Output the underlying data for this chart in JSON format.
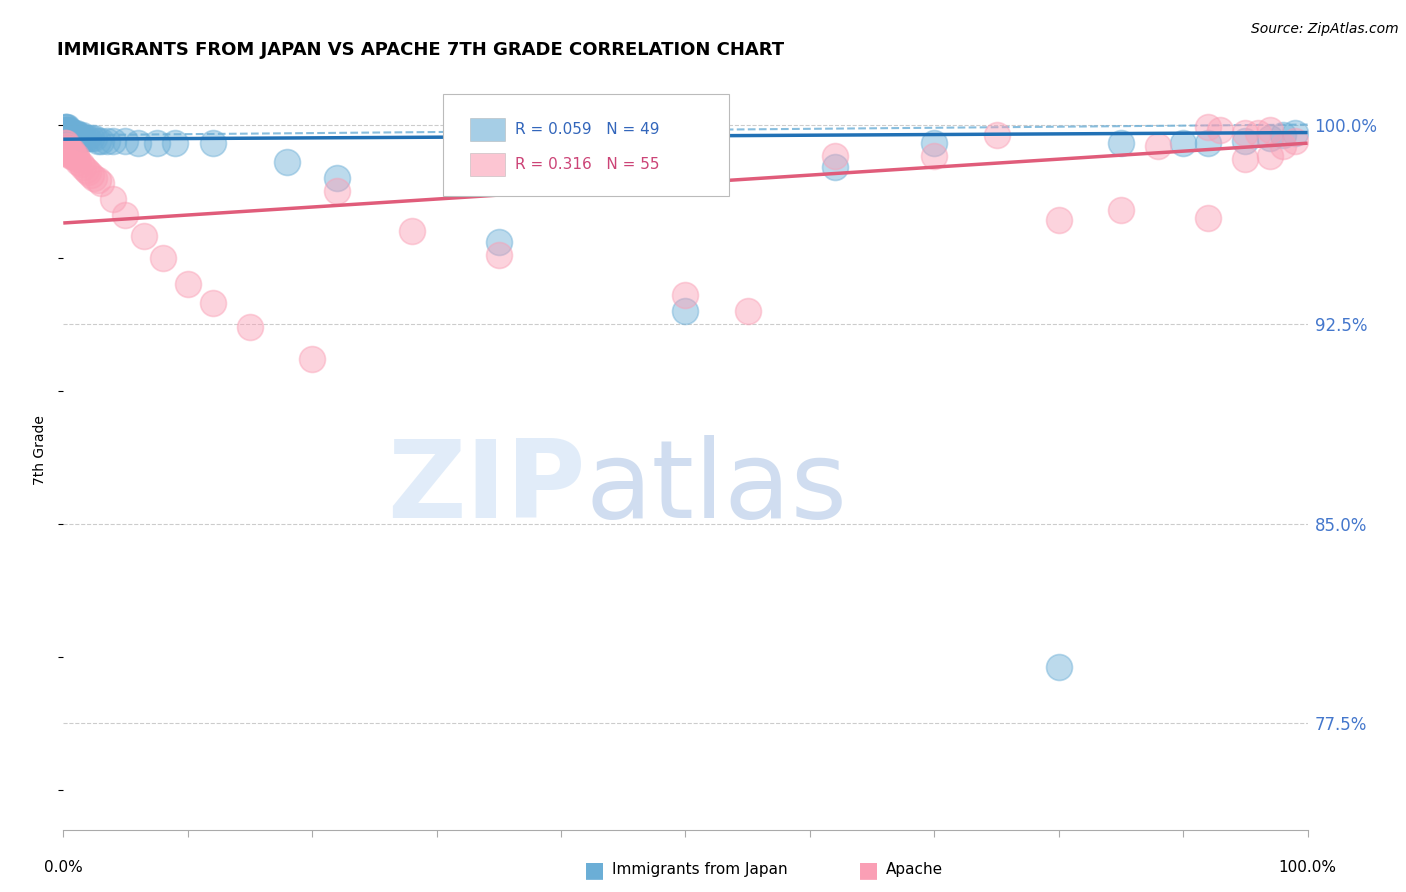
{
  "title": "IMMIGRANTS FROM JAPAN VS APACHE 7TH GRADE CORRELATION CHART",
  "source": "Source: ZipAtlas.com",
  "ylabel": "7th Grade",
  "ytick_labels": [
    "77.5%",
    "85.0%",
    "92.5%",
    "100.0%"
  ],
  "ytick_values": [
    0.775,
    0.85,
    0.925,
    1.0
  ],
  "legend_blue_label": "Immigrants from Japan",
  "legend_pink_label": "Apache",
  "R_blue": 0.059,
  "N_blue": 49,
  "R_pink": 0.316,
  "N_pink": 55,
  "blue_color": "#6baed6",
  "pink_color": "#fa9fb5",
  "blue_line_color": "#2171b5",
  "pink_line_color": "#e05c7a",
  "dashed_line_color": "#6baed6",
  "ylim": [
    0.735,
    1.02
  ],
  "xlim": [
    0.0,
    1.0
  ],
  "blue_x": [
    0.001,
    0.001,
    0.002,
    0.002,
    0.003,
    0.003,
    0.003,
    0.004,
    0.004,
    0.005,
    0.005,
    0.006,
    0.006,
    0.007,
    0.008,
    0.009,
    0.01,
    0.011,
    0.012,
    0.013,
    0.015,
    0.016,
    0.018,
    0.02,
    0.022,
    0.025,
    0.028,
    0.03,
    0.035,
    0.04,
    0.05,
    0.06,
    0.075,
    0.09,
    0.12,
    0.18,
    0.22,
    0.35,
    0.5,
    0.62,
    0.7,
    0.8,
    0.85,
    0.9,
    0.92,
    0.95,
    0.97,
    0.98,
    0.99
  ],
  "blue_y": [
    0.999,
    0.998,
    0.999,
    0.997,
    0.999,
    0.998,
    0.997,
    0.998,
    0.996,
    0.998,
    0.997,
    0.997,
    0.996,
    0.997,
    0.996,
    0.997,
    0.997,
    0.996,
    0.996,
    0.996,
    0.996,
    0.995,
    0.995,
    0.995,
    0.995,
    0.995,
    0.994,
    0.994,
    0.994,
    0.994,
    0.994,
    0.993,
    0.993,
    0.993,
    0.993,
    0.986,
    0.98,
    0.956,
    0.93,
    0.984,
    0.993,
    0.796,
    0.993,
    0.993,
    0.993,
    0.994,
    0.995,
    0.996,
    0.997
  ],
  "pink_x": [
    0.001,
    0.001,
    0.002,
    0.002,
    0.003,
    0.003,
    0.004,
    0.005,
    0.005,
    0.006,
    0.006,
    0.007,
    0.007,
    0.008,
    0.009,
    0.01,
    0.011,
    0.012,
    0.014,
    0.016,
    0.018,
    0.02,
    0.022,
    0.025,
    0.028,
    0.03,
    0.04,
    0.05,
    0.065,
    0.08,
    0.1,
    0.12,
    0.15,
    0.2,
    0.22,
    0.28,
    0.35,
    0.5,
    0.55,
    0.62,
    0.7,
    0.75,
    0.8,
    0.85,
    0.88,
    0.92,
    0.95,
    0.97,
    0.98,
    0.99,
    0.92,
    0.93,
    0.95,
    0.96,
    0.97
  ],
  "pink_y": [
    0.993,
    0.991,
    0.993,
    0.99,
    0.992,
    0.99,
    0.991,
    0.991,
    0.989,
    0.99,
    0.988,
    0.99,
    0.988,
    0.989,
    0.988,
    0.988,
    0.987,
    0.986,
    0.985,
    0.984,
    0.983,
    0.982,
    0.981,
    0.98,
    0.979,
    0.978,
    0.972,
    0.966,
    0.958,
    0.95,
    0.94,
    0.933,
    0.924,
    0.912,
    0.975,
    0.96,
    0.951,
    0.936,
    0.93,
    0.988,
    0.988,
    0.996,
    0.964,
    0.968,
    0.992,
    0.965,
    0.987,
    0.988,
    0.992,
    0.994,
    0.999,
    0.998,
    0.997,
    0.997,
    0.998
  ]
}
